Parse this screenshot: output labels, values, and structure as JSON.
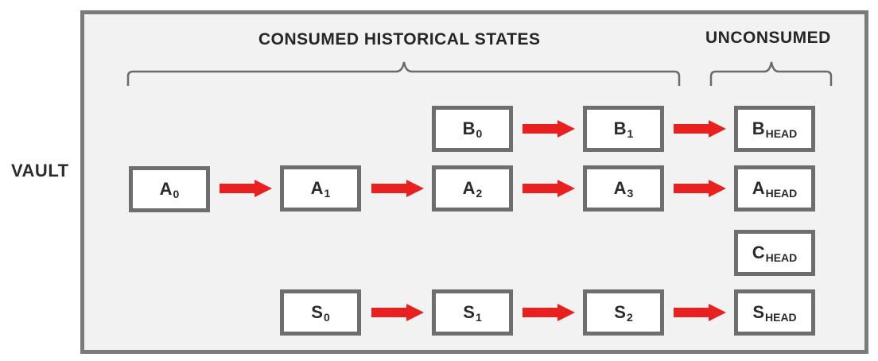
{
  "vault_label": "VAULT",
  "headings": {
    "consumed": "CONSUMED HISTORICAL STATES",
    "unconsumed": "UNCONSUMED"
  },
  "states": [
    {
      "id": "a0",
      "letter": "A",
      "sub": "0"
    },
    {
      "id": "a1",
      "letter": "A",
      "sub": "1"
    },
    {
      "id": "a2",
      "letter": "A",
      "sub": "2"
    },
    {
      "id": "a3",
      "letter": "A",
      "sub": "3"
    },
    {
      "id": "ahead",
      "letter": "A",
      "sub": "HEAD"
    },
    {
      "id": "b0",
      "letter": "B",
      "sub": "0"
    },
    {
      "id": "b1",
      "letter": "B",
      "sub": "1"
    },
    {
      "id": "bhead",
      "letter": "B",
      "sub": "HEAD"
    },
    {
      "id": "chead",
      "letter": "C",
      "sub": "HEAD"
    },
    {
      "id": "s0",
      "letter": "S",
      "sub": "0"
    },
    {
      "id": "s1",
      "letter": "S",
      "sub": "1"
    },
    {
      "id": "s2",
      "letter": "S",
      "sub": "2"
    },
    {
      "id": "shead",
      "letter": "S",
      "sub": "HEAD"
    }
  ],
  "colors": {
    "arrow": "#e8201f",
    "box_border": "#6e6e6e",
    "vault_border": "#7a7a7a",
    "vault_fill": "#f2f2f2"
  }
}
